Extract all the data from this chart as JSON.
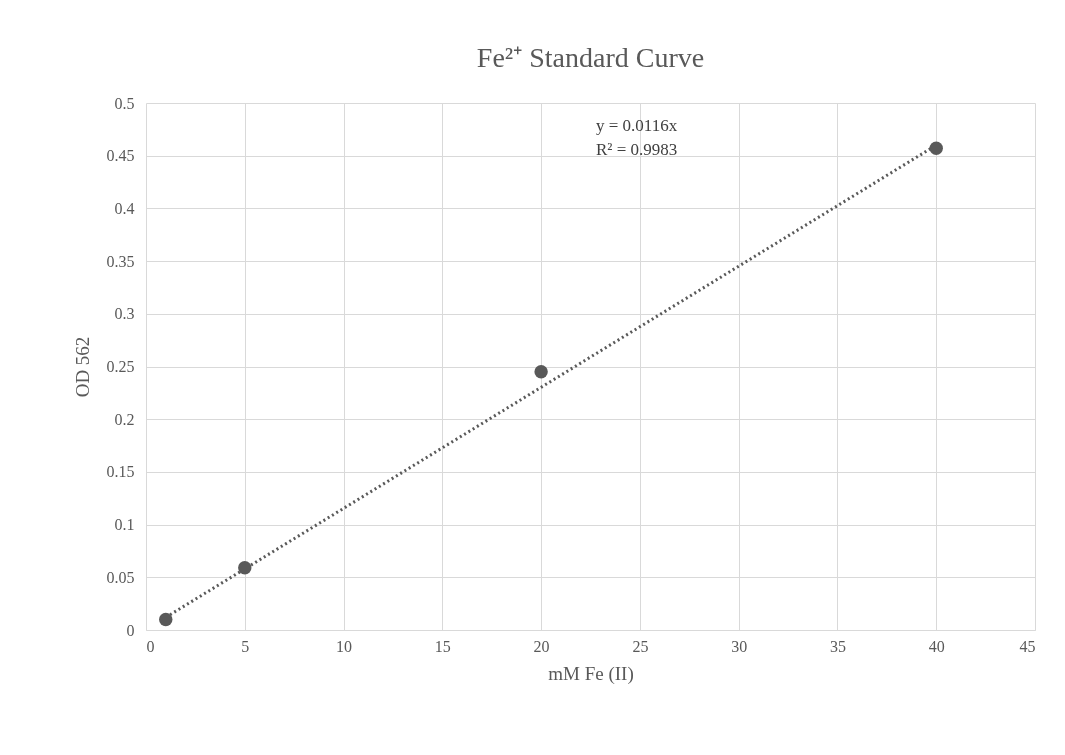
{
  "chart_data": {
    "type": "scatter",
    "title": "Fe²⁺ Standard Curve",
    "xlabel": "mM Fe (II)",
    "ylabel": "OD 562",
    "xlim": [
      0,
      45
    ],
    "xticks": [
      0,
      5,
      10,
      15,
      20,
      25,
      30,
      35,
      40,
      45
    ],
    "ylim": [
      0,
      0.5
    ],
    "yticks": [
      0,
      0.05,
      0.1,
      0.15,
      0.2,
      0.25,
      0.3,
      0.35,
      0.4,
      0.45,
      0.5
    ],
    "grid": true,
    "annotations": [
      "y = 0.0116x",
      "R² = 0.9983"
    ],
    "series": [
      {
        "color": "#595959",
        "marker": "circle",
        "x": [
          1,
          5,
          20,
          40
        ],
        "values": [
          0.01,
          0.059,
          0.245,
          0.457
        ]
      },
      {
        "type": "line",
        "color": "#595959",
        "marker": "none",
        "line_style": "dotted",
        "x": [
          1,
          40
        ],
        "values": [
          0.012,
          0.46
        ]
      }
    ]
  }
}
